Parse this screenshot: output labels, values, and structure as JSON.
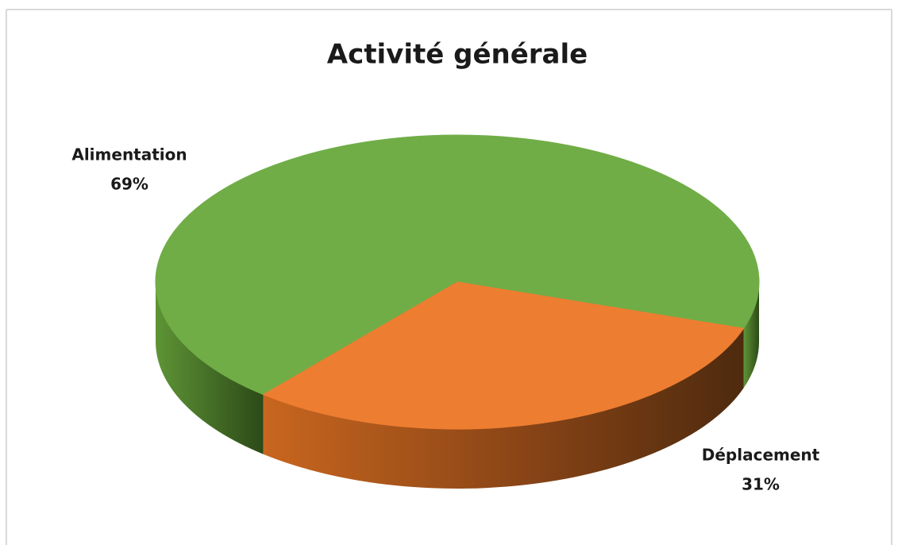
{
  "chart_data": {
    "type": "pie",
    "title": "Activité générale",
    "categories": [
      "Alimentation",
      "Déplacement"
    ],
    "values": [
      69,
      31
    ],
    "value_labels": [
      "69%",
      "31%"
    ],
    "colors": [
      "#70ad47",
      "#ed7d31"
    ]
  }
}
